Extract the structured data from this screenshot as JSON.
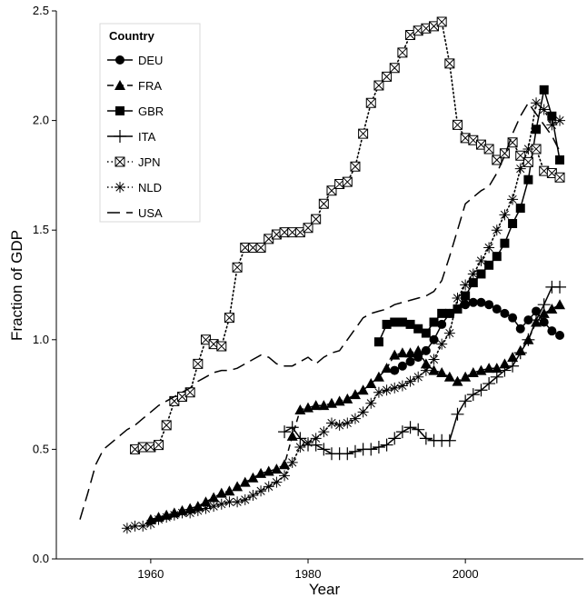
{
  "chart_data": {
    "type": "line",
    "title": "",
    "xlabel": "Year",
    "ylabel": "Fraction of GDP",
    "xlim": [
      1948,
      2015
    ],
    "ylim": [
      0,
      2.5
    ],
    "x_ticks": [
      1960,
      1980,
      2000
    ],
    "y_ticks": [
      "0.0",
      "0.5",
      "1.0",
      "1.5",
      "2.0",
      "2.5"
    ],
    "legend_title": "Country",
    "legend_position": "top-left",
    "grid": false,
    "series": [
      {
        "name": "DEU",
        "marker": "circle",
        "line": "solid",
        "x": [
          1991,
          1992,
          1993,
          1994,
          1995,
          1996,
          1997,
          1998,
          1999,
          2000,
          2001,
          2002,
          2003,
          2004,
          2005,
          2006,
          2007,
          2008,
          2009,
          2010,
          2011,
          2012
        ],
        "y": [
          0.86,
          0.88,
          0.9,
          0.92,
          0.95,
          1.0,
          1.07,
          1.12,
          1.14,
          1.16,
          1.17,
          1.17,
          1.16,
          1.14,
          1.12,
          1.1,
          1.05,
          1.09,
          1.13,
          1.08,
          1.04,
          1.02
        ]
      },
      {
        "name": "FRA",
        "marker": "triangle",
        "line": "dashed",
        "x": [
          1960,
          1961,
          1962,
          1963,
          1964,
          1965,
          1966,
          1967,
          1968,
          1969,
          1970,
          1971,
          1972,
          1973,
          1974,
          1975,
          1976,
          1977,
          1978,
          1979,
          1980,
          1981,
          1982,
          1983,
          1984,
          1985,
          1986,
          1987,
          1988,
          1989,
          1990,
          1991,
          1992,
          1993,
          1994,
          1995,
          1996,
          1997,
          1998,
          1999,
          2000,
          2001,
          2002,
          2003,
          2004,
          2005,
          2006,
          2007,
          2008,
          2009,
          2010,
          2011,
          2012
        ],
        "y": [
          0.18,
          0.19,
          0.2,
          0.21,
          0.22,
          0.23,
          0.24,
          0.26,
          0.28,
          0.3,
          0.31,
          0.33,
          0.35,
          0.37,
          0.39,
          0.4,
          0.41,
          0.43,
          0.56,
          0.68,
          0.69,
          0.7,
          0.7,
          0.71,
          0.72,
          0.73,
          0.75,
          0.77,
          0.8,
          0.83,
          0.87,
          0.93,
          0.94,
          0.94,
          0.95,
          0.89,
          0.86,
          0.85,
          0.83,
          0.81,
          0.83,
          0.85,
          0.86,
          0.87,
          0.87,
          0.89,
          0.92,
          0.95,
          1.0,
          1.08,
          1.12,
          1.14,
          1.16
        ]
      },
      {
        "name": "GBR",
        "marker": "square",
        "line": "solid",
        "x": [
          1989,
          1990,
          1991,
          1992,
          1993,
          1994,
          1995,
          1996,
          1997,
          1998,
          1999,
          2000,
          2001,
          2002,
          2003,
          2004,
          2005,
          2006,
          2007,
          2008,
          2009,
          2010,
          2011,
          2012
        ],
        "y": [
          0.99,
          1.07,
          1.08,
          1.08,
          1.07,
          1.05,
          1.03,
          1.08,
          1.12,
          1.12,
          1.14,
          1.2,
          1.26,
          1.3,
          1.34,
          1.38,
          1.44,
          1.53,
          1.6,
          1.73,
          1.96,
          2.14,
          2.02,
          1.82
        ]
      },
      {
        "name": "ITA",
        "marker": "plus",
        "line": "solid",
        "x": [
          1977,
          1978,
          1979,
          1980,
          1981,
          1982,
          1983,
          1984,
          1985,
          1986,
          1987,
          1988,
          1989,
          1990,
          1991,
          1992,
          1993,
          1994,
          1995,
          1996,
          1997,
          1998,
          1999,
          2000,
          2001,
          2002,
          2003,
          2004,
          2005,
          2006,
          2007,
          2008,
          2009,
          2010,
          2011,
          2012
        ],
        "y": [
          0.58,
          0.6,
          0.55,
          0.52,
          0.52,
          0.5,
          0.48,
          0.48,
          0.48,
          0.49,
          0.5,
          0.5,
          0.51,
          0.52,
          0.55,
          0.58,
          0.6,
          0.59,
          0.55,
          0.54,
          0.54,
          0.54,
          0.66,
          0.72,
          0.75,
          0.77,
          0.8,
          0.83,
          0.86,
          0.88,
          0.94,
          1.0,
          1.09,
          1.16,
          1.24,
          1.24
        ]
      },
      {
        "name": "JPN",
        "marker": "boxx",
        "line": "dotted",
        "x": [
          1958,
          1959,
          1960,
          1961,
          1962,
          1963,
          1964,
          1965,
          1966,
          1967,
          1968,
          1969,
          1970,
          1971,
          1972,
          1973,
          1974,
          1975,
          1976,
          1977,
          1978,
          1979,
          1980,
          1981,
          1982,
          1983,
          1984,
          1985,
          1986,
          1987,
          1988,
          1989,
          1990,
          1991,
          1992,
          1993,
          1994,
          1995,
          1996,
          1997,
          1998,
          1999,
          2000,
          2001,
          2002,
          2003,
          2004,
          2005,
          2006,
          2007,
          2008,
          2009,
          2010,
          2011,
          2012
        ],
        "y": [
          0.5,
          0.51,
          0.51,
          0.52,
          0.61,
          0.72,
          0.74,
          0.76,
          0.89,
          1.0,
          0.98,
          0.97,
          1.1,
          1.33,
          1.42,
          1.42,
          1.42,
          1.46,
          1.48,
          1.49,
          1.49,
          1.49,
          1.51,
          1.55,
          1.62,
          1.68,
          1.71,
          1.72,
          1.79,
          1.94,
          2.08,
          2.16,
          2.2,
          2.24,
          2.31,
          2.39,
          2.41,
          2.42,
          2.43,
          2.45,
          2.26,
          1.98,
          1.92,
          1.91,
          1.89,
          1.87,
          1.82,
          1.85,
          1.9,
          1.84,
          1.81,
          1.87,
          1.77,
          1.76,
          1.74
        ]
      },
      {
        "name": "NLD",
        "marker": "asterisk",
        "line": "dotted",
        "x": [
          1957,
          1958,
          1959,
          1960,
          1961,
          1962,
          1963,
          1964,
          1965,
          1966,
          1967,
          1968,
          1969,
          1970,
          1971,
          1972,
          1973,
          1974,
          1975,
          1976,
          1977,
          1978,
          1979,
          1980,
          1981,
          1982,
          1983,
          1984,
          1985,
          1986,
          1987,
          1988,
          1989,
          1990,
          1991,
          1992,
          1993,
          1994,
          1995,
          1996,
          1997,
          1998,
          1999,
          2000,
          2001,
          2002,
          2003,
          2004,
          2005,
          2006,
          2007,
          2008,
          2009,
          2010,
          2011,
          2012
        ],
        "y": [
          0.14,
          0.15,
          0.15,
          0.16,
          0.18,
          0.19,
          0.2,
          0.21,
          0.21,
          0.22,
          0.23,
          0.24,
          0.25,
          0.26,
          0.26,
          0.27,
          0.29,
          0.31,
          0.33,
          0.35,
          0.38,
          0.44,
          0.51,
          0.53,
          0.55,
          0.58,
          0.62,
          0.61,
          0.62,
          0.64,
          0.67,
          0.71,
          0.76,
          0.77,
          0.78,
          0.79,
          0.81,
          0.83,
          0.86,
          0.91,
          0.98,
          1.03,
          1.19,
          1.25,
          1.3,
          1.36,
          1.42,
          1.5,
          1.57,
          1.64,
          1.78,
          1.87,
          2.08,
          2.05,
          1.98,
          2.0
        ]
      },
      {
        "name": "USA",
        "marker": "none",
        "line": "longdash",
        "x": [
          1951,
          1952,
          1953,
          1954,
          1955,
          1956,
          1957,
          1958,
          1959,
          1960,
          1961,
          1962,
          1963,
          1964,
          1965,
          1966,
          1967,
          1968,
          1969,
          1970,
          1971,
          1972,
          1973,
          1974,
          1975,
          1976,
          1977,
          1978,
          1979,
          1980,
          1981,
          1982,
          1983,
          1984,
          1985,
          1986,
          1987,
          1988,
          1989,
          1990,
          1991,
          1992,
          1993,
          1994,
          1995,
          1996,
          1997,
          1998,
          1999,
          2000,
          2001,
          2002,
          2003,
          2004,
          2005,
          2006,
          2007,
          2008,
          2009,
          2010,
          2011,
          2012
        ],
        "y": [
          0.18,
          0.3,
          0.43,
          0.5,
          0.53,
          0.56,
          0.59,
          0.61,
          0.64,
          0.67,
          0.7,
          0.72,
          0.74,
          0.76,
          0.78,
          0.81,
          0.83,
          0.85,
          0.86,
          0.86,
          0.87,
          0.89,
          0.91,
          0.93,
          0.92,
          0.89,
          0.88,
          0.88,
          0.9,
          0.92,
          0.89,
          0.92,
          0.94,
          0.95,
          1.0,
          1.05,
          1.1,
          1.12,
          1.13,
          1.14,
          1.16,
          1.17,
          1.18,
          1.19,
          1.2,
          1.22,
          1.27,
          1.38,
          1.5,
          1.62,
          1.65,
          1.68,
          1.7,
          1.76,
          1.84,
          1.94,
          2.02,
          2.08,
          2.03,
          1.98,
          1.93,
          1.86
        ]
      }
    ]
  }
}
